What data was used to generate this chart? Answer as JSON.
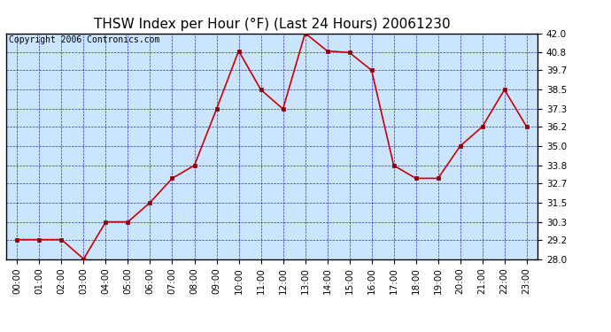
{
  "title": "THSW Index per Hour (°F) (Last 24 Hours) 20061230",
  "copyright": "Copyright 2006 Contronics.com",
  "hours": [
    "00:00",
    "01:00",
    "02:00",
    "03:00",
    "04:00",
    "05:00",
    "06:00",
    "07:00",
    "08:00",
    "09:00",
    "10:00",
    "11:00",
    "12:00",
    "13:00",
    "14:00",
    "15:00",
    "16:00",
    "17:00",
    "18:00",
    "19:00",
    "20:00",
    "21:00",
    "22:00",
    "23:00"
  ],
  "values": [
    29.2,
    29.2,
    29.2,
    28.0,
    30.3,
    30.3,
    31.5,
    33.0,
    33.8,
    37.3,
    40.9,
    38.5,
    37.3,
    42.0,
    40.9,
    40.8,
    39.7,
    33.8,
    33.0,
    33.0,
    35.0,
    36.2,
    38.5,
    36.2
  ],
  "ylim": [
    28.0,
    42.0
  ],
  "yticks": [
    28.0,
    29.2,
    30.3,
    31.5,
    32.7,
    33.8,
    35.0,
    36.2,
    37.3,
    38.5,
    39.7,
    40.8,
    42.0
  ],
  "line_color": "#cc0000",
  "marker_color": "#880000",
  "fig_bg_color": "#ffffff",
  "plot_bg": "#cce5ff",
  "grid_color": "#0000cc",
  "border_color": "#000000",
  "title_color": "#000000",
  "copyright_color": "#000000",
  "title_fontsize": 11,
  "copyright_fontsize": 7,
  "tick_fontsize": 7.5,
  "marker_size": 3,
  "line_width": 1.2
}
